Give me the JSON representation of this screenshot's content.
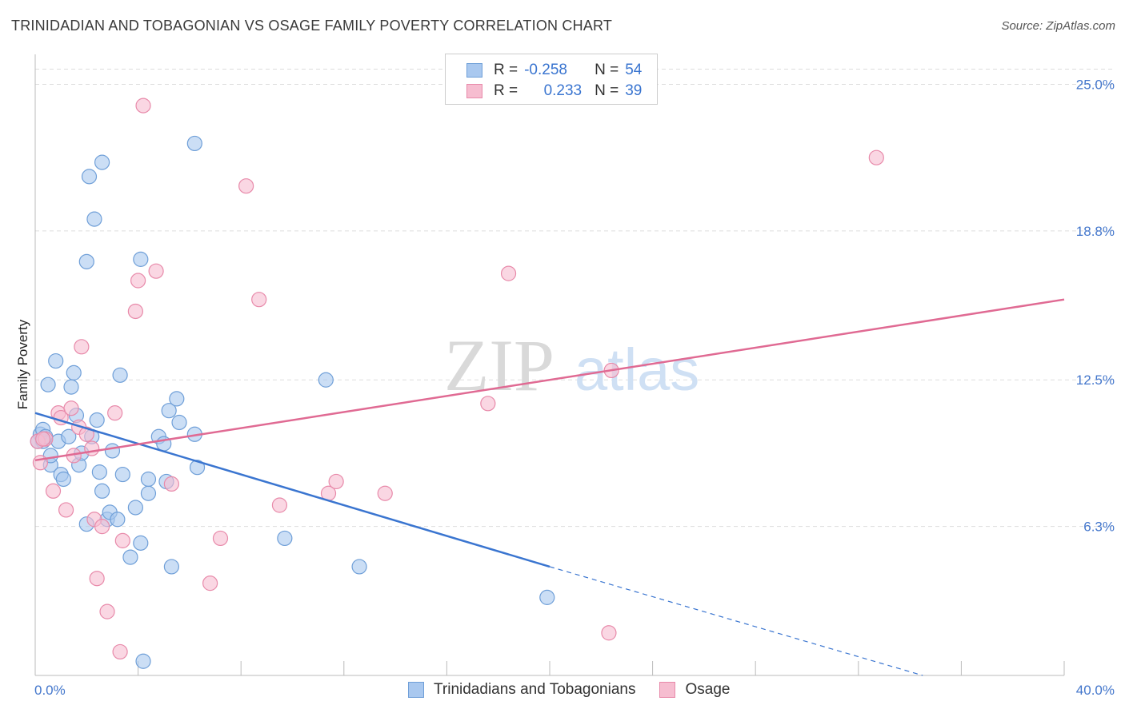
{
  "header": {
    "title": "TRINIDADIAN AND TOBAGONIAN VS OSAGE FAMILY POVERTY CORRELATION CHART",
    "source": "Source: ZipAtlas.com"
  },
  "legend": {
    "rows": [
      {
        "r_label": "R =",
        "r_value": "-0.258",
        "n_label": "N =",
        "n_value": "54"
      },
      {
        "r_label": "R =",
        "r_value": "0.233",
        "n_label": "N =",
        "n_value": "39"
      }
    ]
  },
  "bottom_legend": {
    "series1": "Trinidadians and Tobagonians",
    "series2": "Osage"
  },
  "watermark": {
    "zip": "ZIP",
    "atlas": "atlas"
  },
  "colors": {
    "blue_fill": "#a9c8ef",
    "blue_stroke": "#6f9fd8",
    "blue_line": "#3a75d0",
    "pink_fill": "#f6bdd0",
    "pink_stroke": "#e88aaa",
    "pink_line": "#e06a93",
    "grid": "#dddddd",
    "axis_text": "#4477cc"
  },
  "chart_data": {
    "type": "scatter",
    "title": "TRINIDADIAN AND TOBAGONIAN VS OSAGE FAMILY POVERTY CORRELATION CHART",
    "xlabel": "",
    "ylabel": "Family Poverty",
    "xlim": [
      0,
      40
    ],
    "ylim": [
      0,
      26.2
    ],
    "x_tick_labels": [
      "0.0%",
      "40.0%"
    ],
    "y_ticks": [
      6.3,
      12.5,
      18.8,
      25.0
    ],
    "y_tick_labels": [
      "6.3%",
      "12.5%",
      "18.8%",
      "25.0%"
    ],
    "grid": true,
    "series": [
      {
        "name": "Trinidadians and Tobagonians",
        "R": -0.258,
        "N": 54,
        "trend": {
          "x0": 0.0,
          "y0": 11.1,
          "x1": 20.0,
          "y1": 4.6,
          "dashed_to_x": 34.5,
          "dashed_to_y": 0.0
        },
        "points": [
          [
            0.2,
            10.2
          ],
          [
            0.3,
            9.9
          ],
          [
            0.3,
            10.4
          ],
          [
            0.4,
            10.1
          ],
          [
            0.5,
            12.3
          ],
          [
            0.6,
            8.9
          ],
          [
            0.6,
            9.3
          ],
          [
            0.8,
            13.3
          ],
          [
            0.9,
            9.9
          ],
          [
            1.0,
            8.5
          ],
          [
            1.1,
            8.3
          ],
          [
            1.3,
            10.1
          ],
          [
            1.4,
            12.2
          ],
          [
            1.5,
            12.8
          ],
          [
            1.6,
            11.0
          ],
          [
            1.7,
            8.9
          ],
          [
            1.8,
            9.4
          ],
          [
            2.0,
            6.4
          ],
          [
            2.1,
            21.1
          ],
          [
            2.2,
            10.1
          ],
          [
            2.3,
            19.3
          ],
          [
            2.4,
            10.8
          ],
          [
            2.5,
            8.6
          ],
          [
            2.6,
            21.7
          ],
          [
            2.6,
            7.8
          ],
          [
            2.8,
            6.6
          ],
          [
            2.9,
            6.9
          ],
          [
            3.0,
            9.5
          ],
          [
            3.2,
            6.6
          ],
          [
            3.3,
            12.7
          ],
          [
            3.4,
            8.5
          ],
          [
            3.7,
            5.0
          ],
          [
            3.9,
            7.1
          ],
          [
            4.1,
            5.6
          ],
          [
            4.1,
            17.6
          ],
          [
            4.2,
            0.6
          ],
          [
            4.4,
            7.7
          ],
          [
            4.4,
            8.3
          ],
          [
            4.8,
            10.1
          ],
          [
            5.0,
            9.8
          ],
          [
            5.1,
            8.2
          ],
          [
            5.2,
            11.2
          ],
          [
            5.3,
            4.6
          ],
          [
            5.5,
            11.7
          ],
          [
            5.6,
            10.7
          ],
          [
            6.2,
            10.2
          ],
          [
            6.3,
            8.8
          ],
          [
            6.2,
            22.5
          ],
          [
            2.0,
            17.5
          ],
          [
            9.7,
            5.8
          ],
          [
            11.3,
            12.5
          ],
          [
            12.6,
            4.6
          ],
          [
            19.9,
            3.3
          ],
          [
            0.1,
            9.9
          ]
        ]
      },
      {
        "name": "Osage",
        "R": 0.233,
        "N": 39,
        "trend": {
          "x0": 0.0,
          "y0": 9.1,
          "x1": 40.0,
          "y1": 15.9
        },
        "points": [
          [
            0.1,
            9.9
          ],
          [
            0.2,
            9.0
          ],
          [
            0.4,
            10.0
          ],
          [
            0.7,
            7.8
          ],
          [
            0.9,
            11.1
          ],
          [
            1.0,
            10.9
          ],
          [
            1.2,
            7.0
          ],
          [
            1.4,
            11.3
          ],
          [
            1.5,
            9.3
          ],
          [
            1.7,
            10.5
          ],
          [
            1.8,
            13.9
          ],
          [
            2.0,
            10.2
          ],
          [
            2.2,
            9.6
          ],
          [
            2.3,
            6.6
          ],
          [
            2.4,
            4.1
          ],
          [
            2.6,
            6.3
          ],
          [
            2.8,
            2.7
          ],
          [
            3.1,
            11.1
          ],
          [
            3.3,
            1.0
          ],
          [
            3.4,
            5.7
          ],
          [
            3.9,
            15.4
          ],
          [
            4.0,
            16.7
          ],
          [
            4.2,
            24.1
          ],
          [
            4.7,
            17.1
          ],
          [
            5.3,
            8.1
          ],
          [
            6.8,
            3.9
          ],
          [
            7.2,
            5.8
          ],
          [
            8.2,
            20.7
          ],
          [
            8.7,
            15.9
          ],
          [
            9.5,
            7.2
          ],
          [
            11.4,
            7.7
          ],
          [
            11.7,
            8.2
          ],
          [
            13.6,
            7.7
          ],
          [
            17.6,
            11.5
          ],
          [
            18.4,
            17.0
          ],
          [
            22.4,
            12.9
          ],
          [
            22.3,
            1.8
          ],
          [
            32.7,
            21.9
          ],
          [
            0.3,
            10.0
          ]
        ]
      }
    ]
  }
}
